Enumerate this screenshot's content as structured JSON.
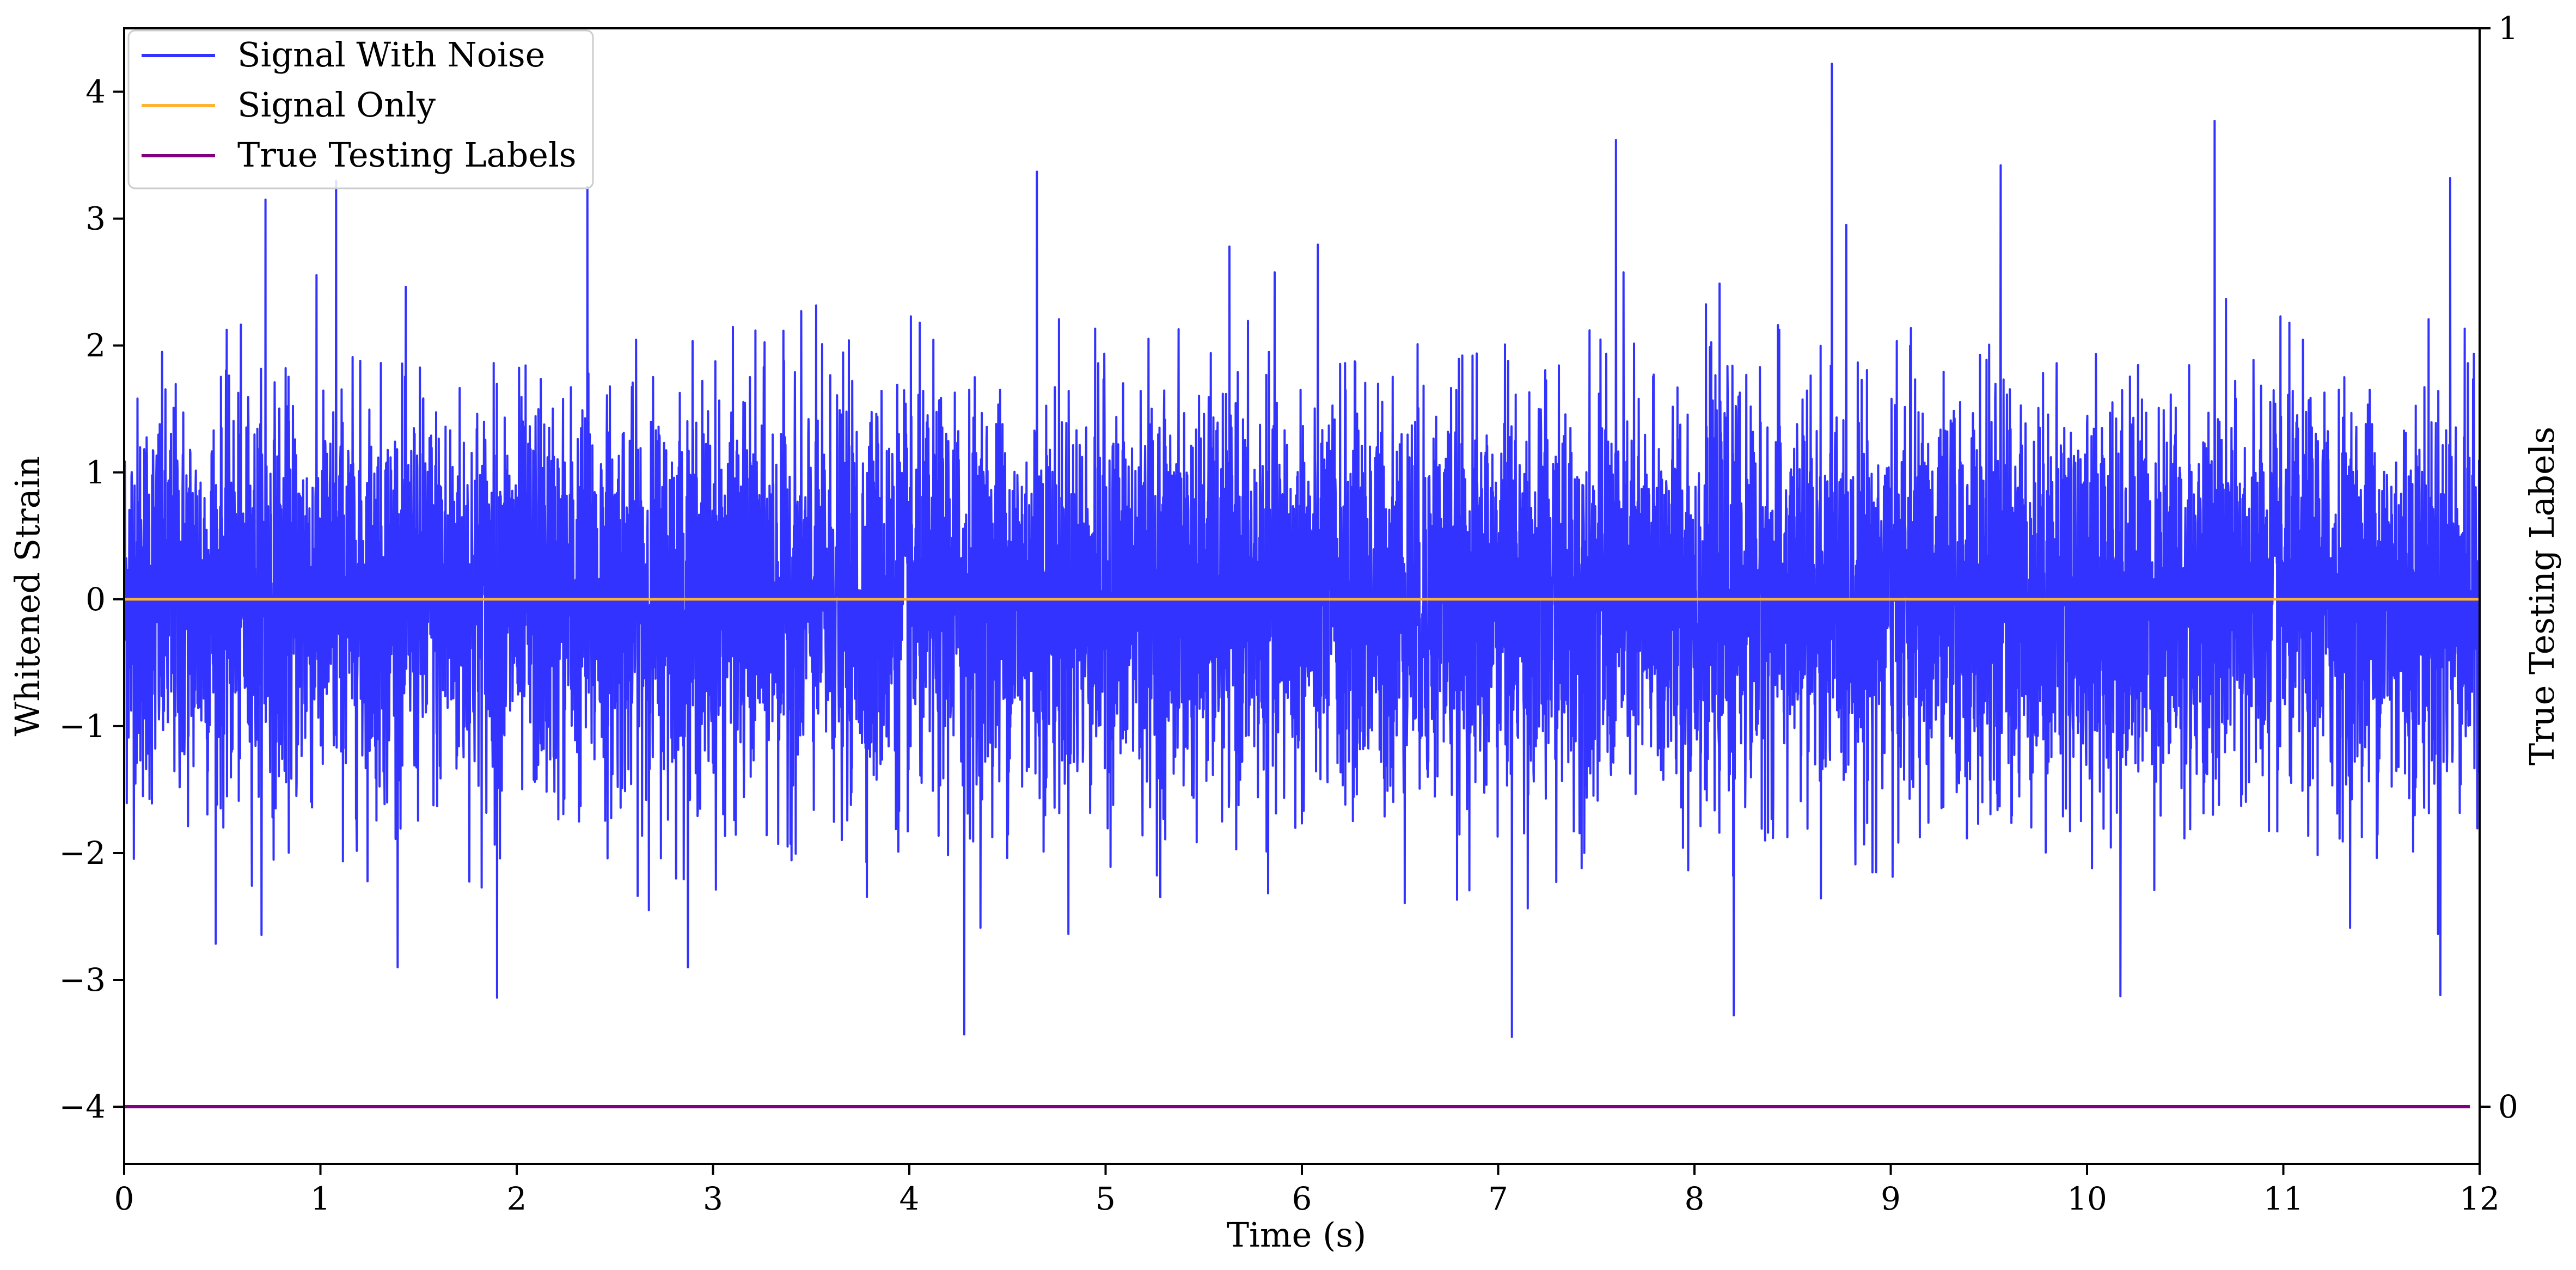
{
  "chart_data": {
    "type": "line",
    "title": "",
    "xlabel": "Time (s)",
    "ylabel": "Whitened Strain",
    "y2label": "True Testing Labels",
    "xlim": [
      0,
      12
    ],
    "ylim": [
      -4.45,
      4.5
    ],
    "y2lim": [
      -0.053,
      1.0
    ],
    "x_ticks": [
      0,
      1,
      2,
      3,
      4,
      5,
      6,
      7,
      8,
      9,
      10,
      11,
      12
    ],
    "y_ticks": [
      -4,
      -3,
      -2,
      -1,
      0,
      1,
      2,
      3,
      4
    ],
    "y2_ticks": [
      0,
      1
    ],
    "grid": false,
    "legend_position": "top-left",
    "colors": {
      "signal_with_noise": "#3333ff",
      "signal_only": "#ffb233",
      "true_labels": "#800080"
    },
    "series": [
      {
        "name": "Signal With Noise",
        "axis": "left",
        "description_stats": {
          "x_start": 0,
          "x_end": 12,
          "y_min": -3.45,
          "y_max": 4.22
        },
        "notable_peaks": [
          {
            "x": 0.72,
            "y": 3.15
          },
          {
            "x": 1.08,
            "y": 3.3
          },
          {
            "x": 2.36,
            "y": 3.25
          },
          {
            "x": 4.65,
            "y": 3.37
          },
          {
            "x": 7.6,
            "y": 3.62
          },
          {
            "x": 8.7,
            "y": 4.22
          },
          {
            "x": 9.56,
            "y": 3.42
          },
          {
            "x": 10.65,
            "y": 3.77
          },
          {
            "x": 11.85,
            "y": 3.32
          }
        ],
        "notable_troughs": [
          {
            "x": 1.9,
            "y": -3.14
          },
          {
            "x": 4.28,
            "y": -3.43
          },
          {
            "x": 7.07,
            "y": -3.45
          },
          {
            "x": 8.2,
            "y": -3.28
          },
          {
            "x": 10.17,
            "y": -3.13
          },
          {
            "x": 11.8,
            "y": -3.12
          }
        ]
      },
      {
        "name": "Signal Only",
        "axis": "left",
        "x": [
          0,
          12
        ],
        "values": [
          0,
          0
        ]
      },
      {
        "name": "True Testing Labels",
        "axis": "right",
        "x": [
          0,
          11.95
        ],
        "values": [
          0,
          0
        ]
      }
    ]
  }
}
